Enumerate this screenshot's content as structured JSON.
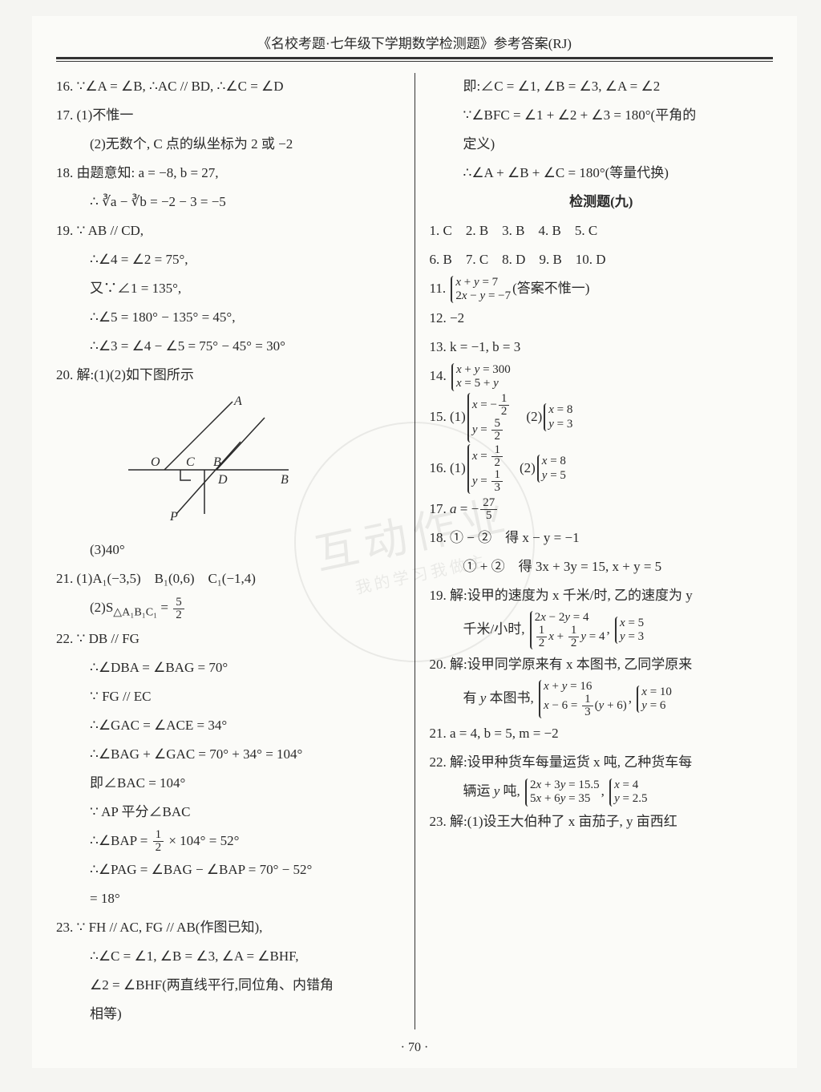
{
  "header_title": "《名校考题·七年级下学期数学检测题》参考答案(RJ)",
  "page_number": "· 70 ·",
  "watermark_main": "互动作业",
  "watermark_sub": "我的学习我做主",
  "left": [
    {
      "cls": "line",
      "text": "16. ∵∠A = ∠B, ∴AC // BD, ∴∠C = ∠D"
    },
    {
      "cls": "line",
      "text": "17. (1)不惟一"
    },
    {
      "cls": "line indent",
      "text": "(2)无数个, C 点的纵坐标为 2 或 −2"
    },
    {
      "cls": "line",
      "text": "18. 由题意知: a = −8, b = 27,"
    },
    {
      "cls": "line indent",
      "text": "∴ ∛a − ∛b = −2 − 3 = −5"
    },
    {
      "cls": "line",
      "text": "19. ∵ AB // CD,"
    },
    {
      "cls": "line indent",
      "text": "∴∠4 = ∠2 = 75°,"
    },
    {
      "cls": "line indent",
      "text": "又∵∠1 = 135°,"
    },
    {
      "cls": "line indent",
      "text": "∴∠5 = 180° − 135° = 45°,"
    },
    {
      "cls": "line indent",
      "text": "∴∠3 = ∠4 − ∠5 = 75° − 45° = 30°"
    },
    {
      "cls": "line",
      "text": "20. 解:(1)(2)如下图所示"
    }
  ],
  "diagram": {
    "labels": {
      "A": "A",
      "O": "O",
      "C": "C",
      "B": "B",
      "D": "D",
      "B2": "B",
      "P": "P"
    },
    "stroke": "#2a2a2a"
  },
  "left2": [
    {
      "cls": "line indent",
      "text": "(3)40°"
    },
    {
      "cls": "line",
      "text": "21. (1)A₁(−3,5)　B₁(0,6)　C₁(−1,4)"
    },
    {
      "cls": "line indent",
      "html": "(2)S<sub>△A₁B₁C₁</sub> = <span class='frac'><span class='num'>5</span><span class='den'>2</span></span>"
    },
    {
      "cls": "line",
      "text": "22. ∵ DB // FG"
    },
    {
      "cls": "line indent",
      "text": "∴∠DBA = ∠BAG = 70°"
    },
    {
      "cls": "line indent",
      "text": "∵ FG // EC"
    },
    {
      "cls": "line indent",
      "text": "∴∠GAC = ∠ACE = 34°"
    },
    {
      "cls": "line indent",
      "text": "∴∠BAG + ∠GAC = 70° + 34° = 104°"
    },
    {
      "cls": "line indent",
      "text": "即∠BAC = 104°"
    },
    {
      "cls": "line indent",
      "text": "∵ AP 平分∠BAC"
    },
    {
      "cls": "line indent",
      "html": "∴∠BAP = <span class='frac'><span class='num'>1</span><span class='den'>2</span></span> × 104° = 52°"
    },
    {
      "cls": "line indent",
      "text": "∴∠PAG = ∠BAG − ∠BAP = 70° − 52°"
    },
    {
      "cls": "line indent",
      "text": "= 18°"
    },
    {
      "cls": "line",
      "text": "23. ∵ FH // AC, FG // AB(作图已知),"
    },
    {
      "cls": "line indent",
      "text": "∴∠C = ∠1, ∠B = ∠3, ∠A = ∠BHF,"
    },
    {
      "cls": "line indent",
      "text": "∠2 = ∠BHF(两直线平行,同位角、内错角"
    },
    {
      "cls": "line indent",
      "text": "相等)"
    }
  ],
  "right": [
    {
      "cls": "line indent",
      "text": "即:∠C = ∠1, ∠B = ∠3, ∠A = ∠2"
    },
    {
      "cls": "line indent",
      "text": "∵∠BFC = ∠1 + ∠2 + ∠3 = 180°(平角的"
    },
    {
      "cls": "line indent",
      "text": "定义)"
    },
    {
      "cls": "line indent",
      "text": "∴∠A + ∠B + ∠C = 180°(等量代换)"
    },
    {
      "cls": "line center",
      "text": "检测题(九)"
    },
    {
      "cls": "line",
      "text": "1. C　2. B　3. B　4. B　5. C"
    },
    {
      "cls": "line",
      "text": "6. B　7. C　8. D　9. B　10. D"
    },
    {
      "cls": "line",
      "html": "11. <span class='brace'><span class='bline'><span class='it'>x</span> + <span class='it'>y</span> = 7</span><span class='bline'>2<span class='it'>x</span> − <span class='it'>y</span> = −7</span></span>(答案不惟一)"
    },
    {
      "cls": "line",
      "text": "12. −2"
    },
    {
      "cls": "line",
      "text": "13. k = −1, b = 3"
    },
    {
      "cls": "line",
      "html": "14. <span class='brace'><span class='bline'><span class='it'>x</span> + <span class='it'>y</span> = 300</span><span class='bline'><span class='it'>x</span> = 5 + <span class='it'>y</span></span></span>"
    },
    {
      "cls": "line",
      "html": "15. (1)<span class='brace'><span class='bline'><span class='it'>x</span> = −<span class='frac'><span class='num'>1</span><span class='den'>2</span></span></span><span class='bline'><span class='it'>y</span> = <span class='frac'><span class='num'>5</span><span class='den'>2</span></span></span></span>　(2)<span class='brace'><span class='bline'><span class='it'>x</span> = 8</span><span class='bline'><span class='it'>y</span> = 3</span></span>"
    },
    {
      "cls": "line",
      "html": "16. (1)<span class='brace'><span class='bline'><span class='it'>x</span> = <span class='frac'><span class='num'>1</span><span class='den'>2</span></span></span><span class='bline'><span class='it'>y</span> = <span class='frac'><span class='num'>1</span><span class='den'>3</span></span></span></span>　(2)<span class='brace'><span class='bline'><span class='it'>x</span> = 8</span><span class='bline'><span class='it'>y</span> = 5</span></span>"
    },
    {
      "cls": "line",
      "html": "17. <span class='it'>a</span> = −<span class='frac'><span class='num'>27</span><span class='den'>5</span></span>"
    },
    {
      "cls": "line",
      "text": "18. ① − ②　得 x − y = −1"
    },
    {
      "cls": "line indent",
      "text": "① + ②　得 3x + 3y = 15, x + y = 5"
    },
    {
      "cls": "line",
      "text": "19. 解:设甲的速度为 x 千米/时, 乙的速度为 y"
    },
    {
      "cls": "line indent",
      "html": "千米/小时, <span class='brace'><span class='bline'>2<span class='it'>x</span> − 2<span class='it'>y</span> = 4</span><span class='bline'><span class='frac'><span class='num'>1</span><span class='den'>2</span></span><span class='it'>x</span> + <span class='frac'><span class='num'>1</span><span class='den'>2</span></span><span class='it'>y</span> = 4</span></span>, <span class='brace'><span class='bline'><span class='it'>x</span> = 5</span><span class='bline'><span class='it'>y</span> = 3</span></span>"
    },
    {
      "cls": "line",
      "text": "20. 解:设甲同学原来有 x 本图书, 乙同学原来"
    },
    {
      "cls": "line indent",
      "html": "有 <span class='it'>y</span> 本图书, <span class='brace'><span class='bline'><span class='it'>x</span> + <span class='it'>y</span> = 16</span><span class='bline'><span class='it'>x</span> − 6 = <span class='frac'><span class='num'>1</span><span class='den'>3</span></span>(<span class='it'>y</span> + 6)</span></span>, <span class='brace'><span class='bline'><span class='it'>x</span> = 10</span><span class='bline'><span class='it'>y</span> = 6</span></span>"
    },
    {
      "cls": "line",
      "text": "21. a = 4, b = 5, m = −2"
    },
    {
      "cls": "line",
      "text": "22. 解:设甲种货车每量运货 x 吨, 乙种货车每"
    },
    {
      "cls": "line indent",
      "html": "辆运 <span class='it'>y</span> 吨, <span class='brace'><span class='bline'>2<span class='it'>x</span> + 3<span class='it'>y</span> = 15.5</span><span class='bline'>5<span class='it'>x</span> + 6<span class='it'>y</span> = 35</span></span>, <span class='brace'><span class='bline'><span class='it'>x</span> = 4</span><span class='bline'><span class='it'>y</span> = 2.5</span></span>"
    },
    {
      "cls": "line",
      "text": "23. 解:(1)设王大伯种了 x 亩茄子, y 亩西红"
    }
  ]
}
